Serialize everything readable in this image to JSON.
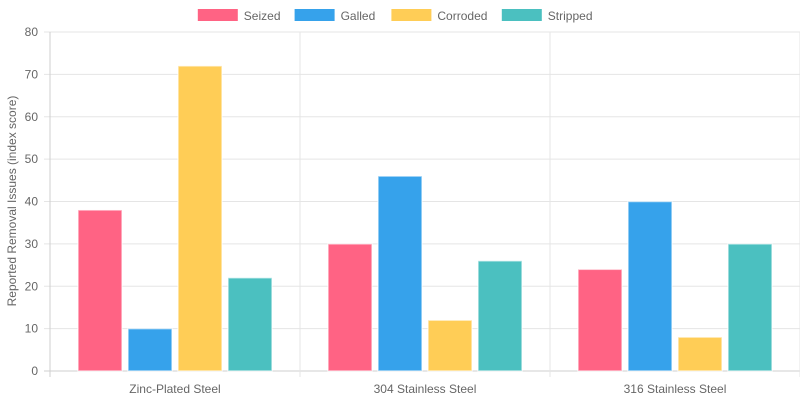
{
  "chart_data": {
    "type": "bar",
    "title": "",
    "xlabel": "",
    "ylabel": "Reported Removal Issues (index score)",
    "ylim": [
      0,
      80
    ],
    "yticks": [
      0,
      10,
      20,
      30,
      40,
      50,
      60,
      70,
      80
    ],
    "grid": true,
    "legend_position": "top-center",
    "categories": [
      "Zinc-Plated Steel",
      "304 Stainless Steel",
      "316 Stainless Steel"
    ],
    "series": [
      {
        "name": "Seized",
        "color": "#ff6384",
        "values": [
          38,
          30,
          24
        ]
      },
      {
        "name": "Galled",
        "color": "#36a2eb",
        "values": [
          10,
          46,
          40
        ]
      },
      {
        "name": "Corroded",
        "color": "#ffcd56",
        "values": [
          72,
          12,
          8
        ]
      },
      {
        "name": "Stripped",
        "color": "#4bc0c0",
        "values": [
          22,
          26,
          30
        ]
      }
    ]
  }
}
